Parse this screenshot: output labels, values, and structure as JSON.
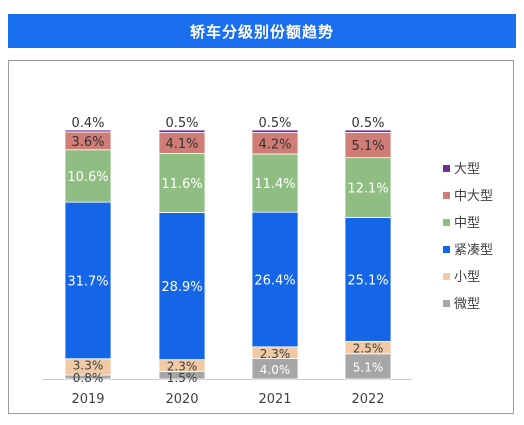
{
  "chart_data": {
    "type": "bar",
    "stacked": true,
    "normalized": true,
    "title": "轿车分级别份额趋势",
    "categories": [
      "2019",
      "2020",
      "2021",
      "2022"
    ],
    "series": [
      {
        "name": "微型",
        "color": "#a6a6a6",
        "values": [
          0.8,
          1.5,
          4.0,
          5.1
        ],
        "labels": [
          "0.8%",
          "1.5%",
          "4.0%",
          "5.1%"
        ]
      },
      {
        "name": "小型",
        "color": "#f1c9a4",
        "values": [
          3.3,
          2.3,
          2.3,
          2.5
        ],
        "labels": [
          "3.3%",
          "2.3%",
          "2.3%",
          "2.5%"
        ]
      },
      {
        "name": "紧凑型",
        "color": "#1565e8",
        "values": [
          31.7,
          28.9,
          26.4,
          25.1
        ],
        "labels": [
          "31.7%",
          "28.9%",
          "26.4%",
          "25.1%"
        ]
      },
      {
        "name": "中型",
        "color": "#8fbd82",
        "values": [
          10.6,
          11.6,
          11.4,
          12.1
        ],
        "labels": [
          "10.6%",
          "11.6%",
          "11.4%",
          "12.1%"
        ]
      },
      {
        "name": "中大型",
        "color": "#cf7d76",
        "values": [
          3.6,
          4.1,
          4.2,
          5.1
        ],
        "labels": [
          "3.6%",
          "4.1%",
          "4.2%",
          "5.1%"
        ]
      },
      {
        "name": "大型",
        "color": "#6e2f9a",
        "values": [
          0.4,
          0.5,
          0.5,
          0.5
        ],
        "labels": [
          "0.4%",
          "0.5%",
          "0.5%",
          "0.5%"
        ]
      }
    ],
    "legend_order": [
      "大型",
      "中大型",
      "中型",
      "紧凑型",
      "小型",
      "微型"
    ],
    "legend_position": "right",
    "grid": false
  }
}
